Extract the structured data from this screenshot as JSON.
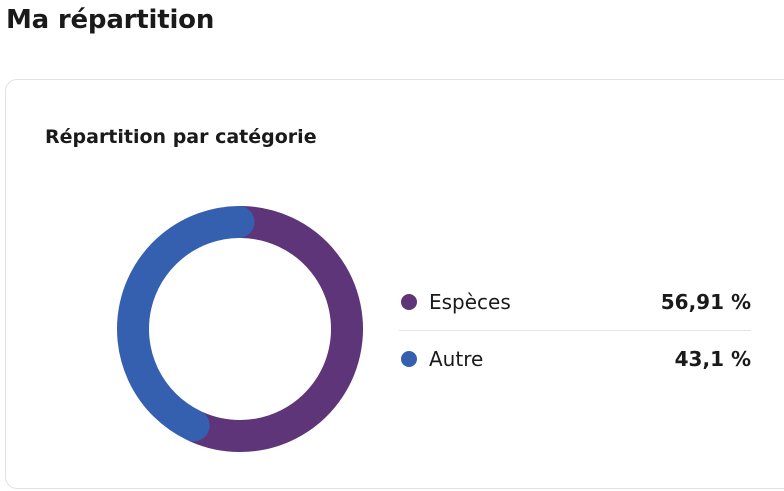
{
  "page": {
    "title": "Ma répartition"
  },
  "card": {
    "title": "Répartition par catégorie"
  },
  "colors": {
    "especes": "#5e3578",
    "autre": "#3560b0"
  },
  "chart_data": {
    "type": "pie",
    "title": "Répartition par catégorie",
    "legend_position": "right",
    "series": [
      {
        "name": "Espèces",
        "value": 56.91,
        "label": "56,91 %",
        "color": "#5e3578"
      },
      {
        "name": "Autre",
        "value": 43.1,
        "label": "43,1 %",
        "color": "#3560b0"
      }
    ]
  }
}
